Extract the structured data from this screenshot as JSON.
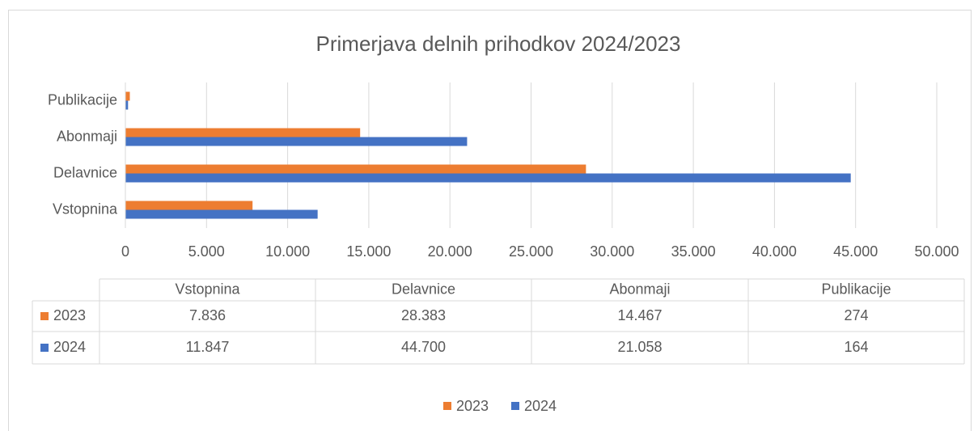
{
  "chart_data": {
    "type": "bar",
    "orientation": "horizontal",
    "title": "Primerjava delnih prihodkov 2024/2023",
    "categories": [
      "Vstopnina",
      "Delavnice",
      "Abonmaji",
      "Publikacije"
    ],
    "series": [
      {
        "name": "2023",
        "color": "#ed7d31",
        "values": [
          7836,
          28383,
          14467,
          274
        ],
        "value_labels": [
          "7.836",
          "28.383",
          "14.467",
          "274"
        ]
      },
      {
        "name": "2024",
        "color": "#4472c4",
        "values": [
          11847,
          44700,
          21058,
          164
        ],
        "value_labels": [
          "11.847",
          "44.700",
          "21.058",
          "164"
        ]
      }
    ],
    "xlim": [
      0,
      50000
    ],
    "xticks": [
      0,
      {
        "value": 5000,
        "label": "5.000"
      },
      {
        "value": 10000,
        "label": "10.000"
      },
      {
        "value": 15000,
        "label": "15.000"
      },
      {
        "value": 20000,
        "label": "20.000"
      },
      {
        "value": 25000,
        "label": "25.000"
      },
      {
        "value": 30000,
        "label": "30.000"
      },
      {
        "value": 35000,
        "label": "35.000"
      },
      {
        "value": 40000,
        "label": "40.000"
      },
      {
        "value": 45000,
        "label": "45.000"
      },
      {
        "value": 50000,
        "label": "50.000"
      }
    ],
    "grid": true,
    "legend": "bottom",
    "data_table": true
  }
}
